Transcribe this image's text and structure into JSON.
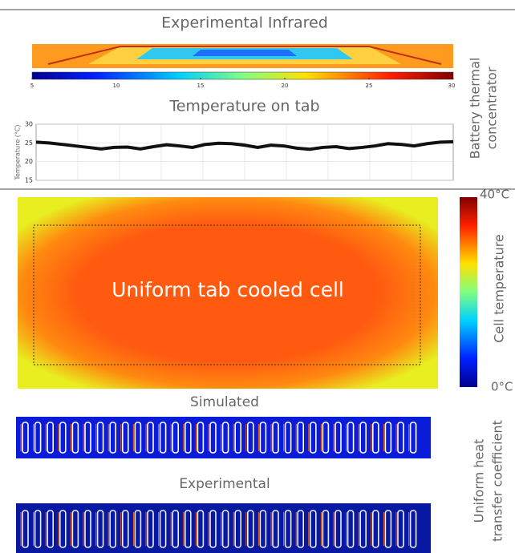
{
  "top_panel": {
    "side_label": [
      "Battery thermal",
      "concentrator"
    ],
    "infrared": {
      "title": "Experimental Infrared",
      "colorbar": {
        "lim": [
          5,
          30
        ],
        "ticks": [
          5,
          10,
          15,
          20,
          25,
          30
        ]
      }
    },
    "tab_plot": {
      "title": "Temperature on tab",
      "y_label": "Temperature (°C)",
      "ylim": [
        15,
        30
      ],
      "yticks": [
        15,
        20,
        25,
        30
      ],
      "values": [
        25.2,
        25,
        24.6,
        24.2,
        23.8,
        23.4,
        23.8,
        23.9,
        23.4,
        24,
        24.5,
        24.2,
        23.8,
        24.6,
        24.9,
        24.8,
        24.4,
        23.8,
        24.4,
        24.2,
        23.6,
        23.3,
        23.8,
        24,
        23.5,
        23.8,
        24.2,
        24.8,
        24.6,
        24.2,
        24.8,
        25.2,
        25.3
      ]
    }
  },
  "middle_panel": {
    "label": "Uniform tab cooled cell",
    "colorbar": {
      "title": "Cell temperature",
      "max_label": "40°C",
      "min_label": "0°C"
    }
  },
  "bottom_panel": {
    "side_label": [
      "Uniform heat",
      "transfer coefficient"
    ],
    "simulated_title": "Simulated",
    "experimental_title": "Experimental"
  }
}
